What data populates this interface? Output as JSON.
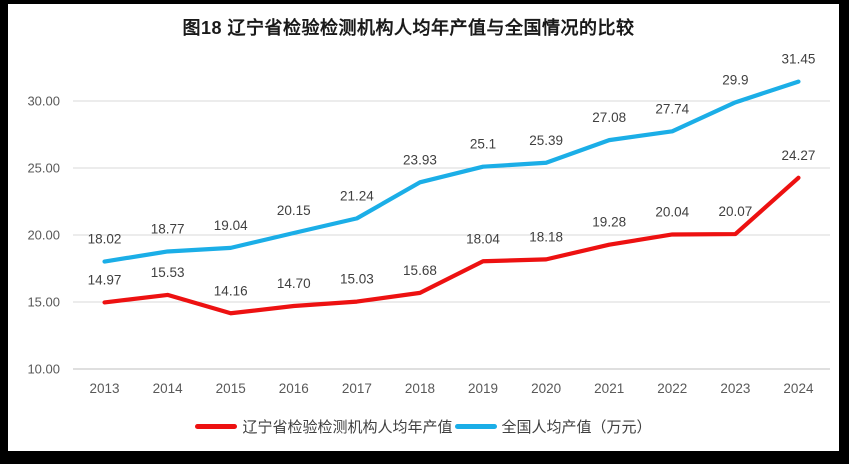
{
  "title": "图18 辽宁省检验检测机构人均年产值与全国情况的比较",
  "chart_data": {
    "type": "line",
    "categories": [
      "2013",
      "2014",
      "2015",
      "2016",
      "2017",
      "2018",
      "2019",
      "2020",
      "2021",
      "2022",
      "2023",
      "2024"
    ],
    "series": [
      {
        "name": "辽宁省检验检测机构人均年产值",
        "color": "#ED1111",
        "values": [
          14.97,
          15.53,
          14.16,
          14.7,
          15.03,
          15.68,
          18.04,
          18.18,
          19.28,
          20.04,
          20.07,
          24.27
        ],
        "labels": [
          "14.97",
          "15.53",
          "14.16",
          "14.70",
          "15.03",
          "15.68",
          "18.04",
          "18.18",
          "19.28",
          "20.04",
          "20.07",
          "24.27"
        ]
      },
      {
        "name": "全国人均产值（万元）",
        "color": "#1BAEE7",
        "values": [
          18.02,
          18.77,
          19.04,
          20.15,
          21.24,
          23.93,
          25.1,
          25.39,
          27.08,
          27.74,
          29.9,
          31.45
        ],
        "labels": [
          "18.02",
          "18.77",
          "19.04",
          "20.15",
          "21.24",
          "23.93",
          "25.1",
          "25.39",
          "27.08",
          "27.74",
          "29.9",
          "31.45"
        ]
      }
    ],
    "ylim": [
      10,
      32.5
    ],
    "yticks": [
      10,
      15,
      20,
      25,
      30
    ],
    "ytick_labels": [
      "10.00",
      "15.00",
      "20.00",
      "25.00",
      "30.00"
    ],
    "grid": true,
    "legend_position": "bottom"
  },
  "colors": {
    "grid": "#D9D9D9",
    "axis_line": "#BFBFBF",
    "axis_text": "#595959",
    "data_label": "#404040",
    "title_text": "#1A1A1A",
    "background": "#FFFFFF",
    "border": "#000000"
  }
}
